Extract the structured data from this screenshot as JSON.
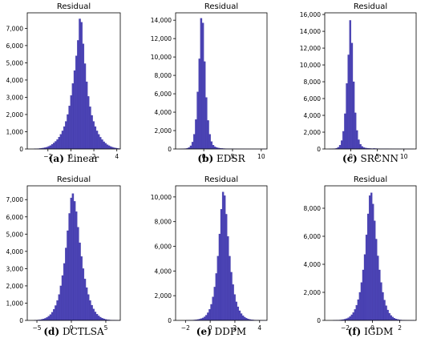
{
  "chart_data": [
    {
      "type": "bar",
      "title": "Residual",
      "caption_letter": "(a)",
      "caption_name": "Linear",
      "xlim": [
        -3.8,
        4.3
      ],
      "ylim": [
        0,
        7900
      ],
      "xticks": [
        -2,
        0,
        2,
        4
      ],
      "xtick_labels": [
        "−2",
        "0",
        "2",
        "4"
      ],
      "yticks": [
        0,
        1000,
        2000,
        3000,
        4000,
        5000,
        6000,
        7000
      ],
      "ytick_labels": [
        "0",
        "1,000",
        "2,000",
        "3,000",
        "4,000",
        "5,000",
        "6,000",
        "7,000"
      ],
      "bin_start": -3.2,
      "bin_width": 0.15,
      "values": [
        10,
        15,
        20,
        30,
        45,
        60,
        80,
        110,
        150,
        200,
        270,
        350,
        440,
        550,
        690,
        850,
        1050,
        1300,
        1600,
        2000,
        2500,
        3100,
        3800,
        4550,
        5400,
        6300,
        7550,
        7350,
        6100,
        4950,
        3900,
        3050,
        2450,
        1950,
        1600,
        1300,
        1050,
        850,
        680,
        540,
        420,
        330,
        250,
        190,
        140,
        100,
        70,
        50,
        35,
        20
      ]
    },
    {
      "type": "bar",
      "title": "Residual",
      "caption_letter": "(b)",
      "caption_name": "EDSR",
      "xlim": [
        -4.9,
        11.0
      ],
      "ylim": [
        0,
        14800
      ],
      "xticks": [
        0,
        5,
        10
      ],
      "xtick_labels": [
        "0",
        "5",
        "10"
      ],
      "yticks": [
        0,
        2000,
        4000,
        6000,
        8000,
        10000,
        12000,
        14000
      ],
      "ytick_labels": [
        "0",
        "2,000",
        "4,000",
        "6,000",
        "8,000",
        "10,000",
        "12,000",
        "14,000"
      ],
      "bin_start": -4.2,
      "bin_width": 0.3,
      "values": [
        5,
        10,
        20,
        40,
        80,
        160,
        350,
        750,
        1600,
        3200,
        6200,
        9800,
        14200,
        13700,
        9500,
        5600,
        3100,
        1600,
        800,
        420,
        250,
        160,
        110,
        80,
        60,
        45,
        35,
        28,
        22,
        18,
        14,
        12,
        10,
        8,
        6,
        5,
        5,
        4,
        3,
        3,
        2,
        2,
        2,
        2,
        1,
        1,
        1,
        1,
        1,
        1
      ]
    },
    {
      "type": "bar",
      "title": "Residual",
      "caption_letter": "(c)",
      "caption_name": "SRCNN",
      "xlim": [
        -4.9,
        12.3
      ],
      "ylim": [
        0,
        16200
      ],
      "xticks": [
        0,
        5,
        10
      ],
      "xtick_labels": [
        "0",
        "5",
        "10"
      ],
      "yticks": [
        0,
        2000,
        4000,
        6000,
        8000,
        10000,
        12000,
        14000,
        16000
      ],
      "ytick_labels": [
        "0",
        "2,000",
        "4,000",
        "6,000",
        "8,000",
        "10,000",
        "12,000",
        "14,000",
        "16,000"
      ],
      "bin_start": -4.1,
      "bin_width": 0.32,
      "values": [
        5,
        10,
        20,
        40,
        90,
        200,
        450,
        1000,
        2100,
        4200,
        7800,
        11200,
        15300,
        12600,
        8000,
        4300,
        2200,
        1100,
        560,
        300,
        180,
        120,
        90,
        70,
        55,
        45,
        60,
        50,
        40,
        35,
        30,
        26,
        22,
        18,
        15,
        13,
        11,
        10,
        8,
        7,
        6,
        5,
        4,
        3,
        3,
        2,
        2,
        2,
        1,
        1
      ]
    },
    {
      "type": "bar",
      "title": "Residual",
      "caption_letter": "(d)",
      "caption_name": "DCTLSA",
      "xlim": [
        -6.4,
        7.1
      ],
      "ylim": [
        0,
        7800
      ],
      "xticks": [
        -5,
        0,
        5
      ],
      "xtick_labels": [
        "−5",
        "0",
        "5"
      ],
      "yticks": [
        0,
        1000,
        2000,
        3000,
        4000,
        5000,
        6000,
        7000
      ],
      "ytick_labels": [
        "0",
        "1,000",
        "2,000",
        "3,000",
        "4,000",
        "5,000",
        "6,000",
        "7,000"
      ],
      "bin_start": -5.4,
      "bin_width": 0.25,
      "values": [
        10,
        15,
        25,
        35,
        55,
        80,
        120,
        170,
        240,
        340,
        470,
        640,
        860,
        1150,
        1500,
        2000,
        2600,
        3300,
        4200,
        5200,
        6200,
        7100,
        7350,
        6900,
        6300,
        5400,
        4500,
        3700,
        3000,
        2400,
        1900,
        1500,
        1150,
        880,
        660,
        490,
        360,
        260,
        185,
        130,
        90,
        60,
        40,
        28,
        18,
        12,
        8,
        5,
        3,
        2
      ]
    },
    {
      "type": "bar",
      "title": "Residual",
      "caption_letter": "(e)",
      "caption_name": "DDPM",
      "xlim": [
        -2.8,
        4.6
      ],
      "ylim": [
        0,
        10900
      ],
      "xticks": [
        -2,
        0,
        2,
        4
      ],
      "xtick_labels": [
        "−2",
        "0",
        "2",
        "4"
      ],
      "yticks": [
        0,
        2000,
        4000,
        6000,
        8000,
        10000
      ],
      "ytick_labels": [
        "0",
        "2,000",
        "4,000",
        "6,000",
        "8,000",
        "10,000"
      ],
      "bin_start": -2.0,
      "bin_width": 0.135,
      "values": [
        5,
        8,
        12,
        18,
        25,
        35,
        50,
        70,
        100,
        140,
        200,
        290,
        420,
        620,
        900,
        1300,
        1900,
        2700,
        3800,
        5200,
        7000,
        9000,
        10400,
        10100,
        8600,
        6800,
        5200,
        3900,
        2900,
        2100,
        1500,
        1100,
        780,
        550,
        380,
        260,
        180,
        120,
        80,
        55,
        38,
        26,
        18,
        12,
        8,
        5,
        3,
        2,
        1,
        1
      ]
    },
    {
      "type": "bar",
      "title": "Residual",
      "caption_letter": "(f)",
      "caption_name": "IGDM",
      "xlim": [
        -3.5,
        3.2
      ],
      "ylim": [
        0,
        9600
      ],
      "xticks": [
        -2,
        0,
        2
      ],
      "xtick_labels": [
        "−2",
        "0",
        "2"
      ],
      "yticks": [
        0,
        2000,
        4000,
        6000,
        8000
      ],
      "ytick_labels": [
        "0",
        "2,000",
        "4,000",
        "6,000",
        "8,000"
      ],
      "bin_start": -2.9,
      "bin_width": 0.12,
      "values": [
        5,
        8,
        12,
        18,
        28,
        40,
        60,
        90,
        130,
        190,
        280,
        400,
        560,
        780,
        1080,
        1480,
        2000,
        2700,
        3600,
        4700,
        6100,
        7600,
        8900,
        9100,
        8300,
        7100,
        5800,
        4600,
        3600,
        2700,
        2000,
        1450,
        1050,
        740,
        510,
        350,
        240,
        160,
        105,
        70,
        45,
        30,
        20,
        13,
        8,
        5,
        3,
        2,
        1,
        1
      ]
    }
  ],
  "colors": {
    "bar": "#4c44b6",
    "bar_edge": "#3a33a0"
  }
}
